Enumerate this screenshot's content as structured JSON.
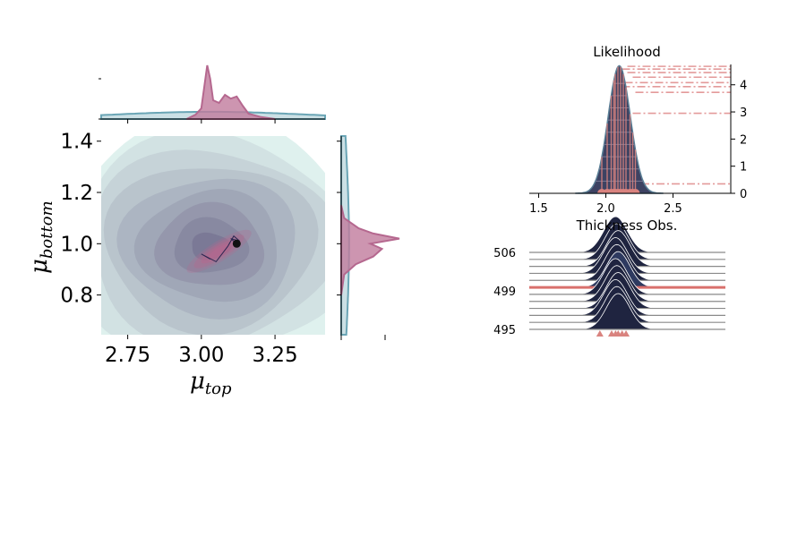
{
  "colors": {
    "posterior": "#b5688f",
    "posterior_fill": "#c07a9c",
    "prior": "#6aa5b5",
    "contour_low": "#dcefec",
    "contour_high": "#7a7895",
    "ridge": "#1f2440",
    "likelihood_line": "#e39a9a",
    "obs_marker": "#d9837f",
    "selected_line": "#d9706c"
  },
  "chart_data": [
    {
      "type": "contour",
      "name": "joint",
      "xlabel": "μ",
      "xlabel_sub": "top",
      "ylabel": "μ",
      "ylabel_sub": "bottom",
      "xlim": [
        2.66,
        3.42
      ],
      "ylim": [
        0.645,
        1.42
      ],
      "xticks": [
        2.75,
        3.0,
        3.25
      ],
      "xtick_labels": [
        "2.75",
        "3.00",
        "3.25"
      ],
      "yticks": [
        0.8,
        1.0,
        1.2,
        1.4
      ],
      "ytick_labels": [
        "0.8",
        "1.0",
        "1.2",
        "1.4"
      ],
      "prior_center": [
        3.03,
        0.99
      ],
      "posterior_center": [
        3.06,
        0.97
      ],
      "trace": [
        [
          3.03,
          0.94
        ],
        [
          3.0,
          0.96
        ],
        [
          3.05,
          0.93
        ],
        [
          3.09,
          0.99
        ],
        [
          3.11,
          1.03
        ],
        [
          3.13,
          1.01
        ],
        [
          3.1,
          1.02
        ],
        [
          3.12,
          1.0
        ]
      ],
      "map_point": [
        3.12,
        1.0
      ]
    },
    {
      "type": "area",
      "name": "top-marginal",
      "axis": "μ_top",
      "x": [
        2.95,
        2.98,
        3.0,
        3.01,
        3.02,
        3.03,
        3.04,
        3.06,
        3.08,
        3.1,
        3.12,
        3.14,
        3.16,
        3.2,
        3.25
      ],
      "posterior": [
        0.0,
        0.08,
        0.2,
        0.6,
        1.0,
        0.75,
        0.35,
        0.3,
        0.45,
        0.38,
        0.42,
        0.25,
        0.1,
        0.04,
        0.0
      ],
      "prior_peak": 0.15
    },
    {
      "type": "area",
      "name": "right-marginal",
      "axis": "μ_bottom",
      "y": [
        0.8,
        0.88,
        0.92,
        0.95,
        0.98,
        1.0,
        1.02,
        1.04,
        1.06,
        1.1,
        1.15
      ],
      "posterior": [
        0.0,
        0.05,
        0.25,
        0.55,
        0.7,
        0.5,
        1.0,
        0.55,
        0.3,
        0.05,
        0.0
      ],
      "prior_peak": 0.15
    },
    {
      "type": "line",
      "name": "likelihood",
      "title": "Likelihood",
      "xlim": [
        1.43,
        2.93
      ],
      "ylim": [
        0,
        4.75
      ],
      "xticks": [
        1.5,
        2.0,
        2.5
      ],
      "xtick_labels": [
        "1.5",
        "2.0",
        "2.5"
      ],
      "yticks": [
        0,
        1,
        2,
        3,
        4
      ],
      "ytick_labels": [
        "0",
        "1",
        "2",
        "3",
        "4"
      ],
      "center": 2.1,
      "sigma": 0.082,
      "peak": 4.7,
      "obs": [
        1.97,
        2.01,
        2.04,
        2.06,
        2.07,
        2.09,
        2.11,
        2.13,
        2.15,
        2.18,
        2.2,
        2.22
      ],
      "dashdot_levels": [
        0.35,
        2.95,
        3.72,
        3.93,
        4.08,
        4.28,
        4.45,
        4.58,
        4.68
      ],
      "dashdot_starts": [
        2.15,
        2.2,
        2.22,
        2.12,
        2.14,
        2.2,
        2.16,
        2.12,
        2.16
      ]
    },
    {
      "type": "ridgeline",
      "name": "thickness-obs",
      "title": "Thickness Obs.",
      "ytick_labels": [
        "506",
        "499",
        "495"
      ],
      "n_rows": 12,
      "highlight_row": 5,
      "xlim": [
        1.43,
        2.93
      ],
      "center": 2.1,
      "sigma": 0.09,
      "obs": [
        1.97,
        2.06,
        2.09,
        2.11,
        2.14,
        2.17
      ]
    }
  ]
}
